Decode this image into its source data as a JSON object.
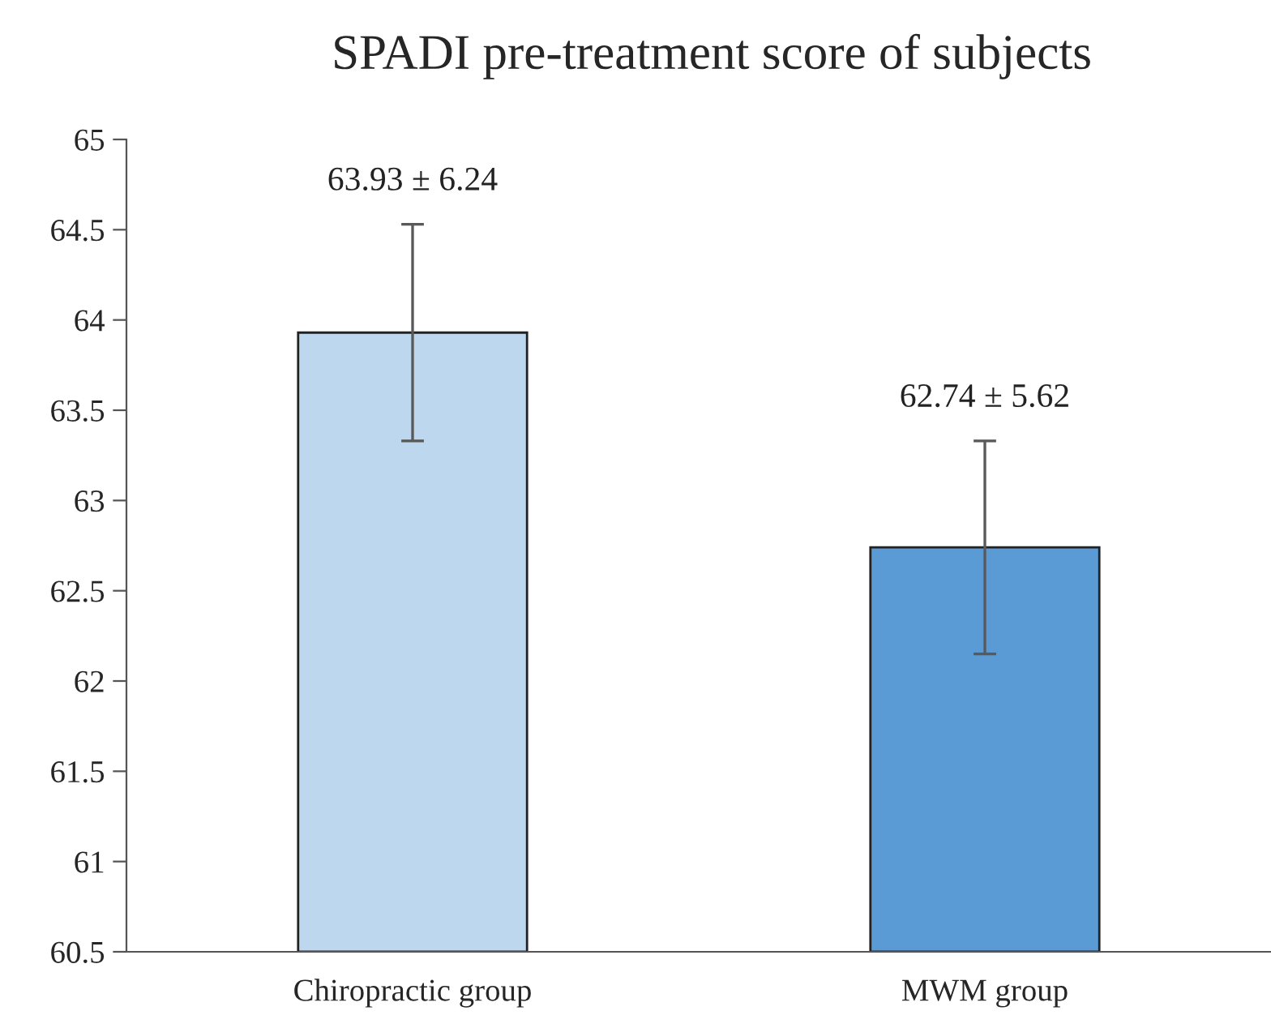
{
  "chart_data": {
    "type": "bar",
    "title": "SPADI pre-treatment score of subjects",
    "categories": [
      "Chiropractic group",
      "MWM group"
    ],
    "values": [
      63.93,
      62.74
    ],
    "colors": [
      "#bdd7ee",
      "#5b9bd5"
    ],
    "errors": [
      [
        63.33,
        64.53
      ],
      [
        62.15,
        63.33
      ]
    ],
    "annotations": [
      {
        "text": "63.93 ± 6.24",
        "x": "Chiropractic group",
        "y": 64.53
      },
      {
        "text": "62.74 ± 5.62",
        "x": "MWM group",
        "y": 63.33
      }
    ],
    "ylim": [
      60.5,
      65
    ],
    "yticks": [
      60.5,
      61,
      61.5,
      62,
      62.5,
      63,
      63.5,
      64,
      64.5,
      65
    ],
    "grid": false,
    "legend": false
  }
}
